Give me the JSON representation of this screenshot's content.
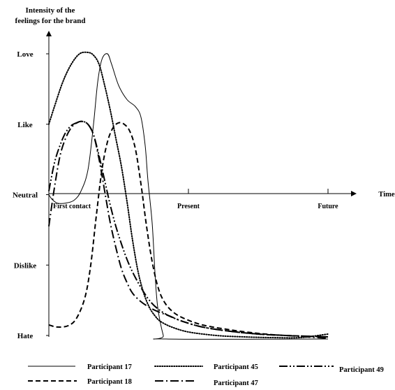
{
  "chart_data": {
    "type": "line",
    "ylabel_lines": [
      "Intensity of the",
      "feelings for the brand"
    ],
    "xlabel": "Time",
    "y_levels": [
      "Hate",
      "Dislike",
      "Neutral",
      "Like",
      "Love"
    ],
    "y_values": [
      -2,
      -1,
      0,
      1,
      2
    ],
    "ylim": [
      -2,
      2
    ],
    "x_ticks": [
      {
        "label": "First contact",
        "value": 0
      },
      {
        "label": "Present",
        "value": 1
      },
      {
        "label": "Future",
        "value": 2
      }
    ],
    "xlim": [
      0,
      2
    ],
    "grid": false,
    "legend_position": "bottom",
    "series": [
      {
        "name": "Participant 17",
        "style": "solid",
        "x": [
          0,
          0.02,
          0.06,
          0.12,
          0.18,
          0.23,
          0.28,
          0.32,
          0.35,
          0.38,
          0.42,
          0.45,
          0.5,
          0.56,
          0.62,
          0.66,
          0.69,
          0.71,
          0.74,
          0.76,
          0.78,
          0.82,
          0.84,
          2
        ],
        "y": [
          0,
          -0.06,
          -0.12,
          -0.12,
          -0.08,
          0.05,
          0.35,
          1.0,
          1.6,
          1.92,
          2.0,
          1.85,
          1.55,
          1.35,
          1.25,
          1.1,
          0.7,
          0.2,
          -0.4,
          -1.1,
          -1.6,
          -2.0,
          -2.05,
          -2.05
        ]
      },
      {
        "name": "Participant 18",
        "style": "dashed",
        "x": [
          0,
          0.06,
          0.14,
          0.2,
          0.26,
          0.3,
          0.34,
          0.38,
          0.42,
          0.46,
          0.5,
          0.54,
          0.58,
          0.62,
          0.66,
          0.7,
          0.74,
          0.78,
          0.82,
          0.88,
          0.96,
          1.1,
          1.3,
          1.5,
          1.7,
          2
        ],
        "y": [
          -1.85,
          -1.88,
          -1.86,
          -1.75,
          -1.45,
          -1.0,
          -0.3,
          0.35,
          0.75,
          0.95,
          1.02,
          1.0,
          0.9,
          0.65,
          0.15,
          -0.45,
          -0.95,
          -1.3,
          -1.5,
          -1.65,
          -1.75,
          -1.85,
          -1.92,
          -1.97,
          -2.0,
          -2.02
        ]
      },
      {
        "name": "Participant 45",
        "style": "dotted",
        "x": [
          0,
          0.04,
          0.1,
          0.16,
          0.22,
          0.28,
          0.32,
          0.36,
          0.4,
          0.44,
          0.48,
          0.52,
          0.56,
          0.6,
          0.64,
          0.68,
          0.72,
          0.76,
          0.8,
          0.88,
          1.0,
          1.2,
          1.4,
          1.6,
          1.8,
          2
        ],
        "y": [
          1.0,
          1.25,
          1.6,
          1.85,
          2.0,
          2.02,
          1.98,
          1.85,
          1.55,
          1.2,
          0.8,
          0.4,
          -0.1,
          -0.65,
          -1.1,
          -1.4,
          -1.6,
          -1.72,
          -1.8,
          -1.88,
          -1.95,
          -2.0,
          -2.02,
          -2.03,
          -2.03,
          -1.98
        ]
      },
      {
        "name": "Participant 47",
        "style": "dash-dot",
        "x": [
          0,
          0.04,
          0.08,
          0.12,
          0.16,
          0.2,
          0.24,
          0.28,
          0.32,
          0.36,
          0.4,
          0.44,
          0.48,
          0.52,
          0.56,
          0.6,
          0.66,
          0.72,
          0.78,
          0.86,
          0.96,
          1.1,
          1.3,
          1.5,
          1.7,
          1.85,
          2
        ],
        "y": [
          -0.45,
          0.1,
          0.55,
          0.8,
          0.95,
          1.02,
          1.04,
          1.0,
          0.85,
          0.5,
          0.05,
          -0.4,
          -0.75,
          -1.05,
          -1.25,
          -1.4,
          -1.52,
          -1.6,
          -1.66,
          -1.72,
          -1.8,
          -1.88,
          -1.94,
          -1.98,
          -2.0,
          -2.02,
          -2.04
        ]
      },
      {
        "name": "Participant 49",
        "style": "dash-dot-dot",
        "x": [
          0,
          0.04,
          0.08,
          0.12,
          0.16,
          0.2,
          0.24,
          0.28,
          0.32,
          0.36,
          0.4,
          0.44,
          0.48,
          0.52,
          0.56,
          0.6,
          0.66,
          0.72,
          0.78,
          0.86,
          0.96,
          1.1,
          1.3,
          1.5,
          1.7,
          1.85,
          2
        ],
        "y": [
          0.05,
          0.45,
          0.7,
          0.88,
          0.98,
          1.02,
          1.04,
          1.0,
          0.85,
          0.55,
          0.2,
          -0.15,
          -0.45,
          -0.7,
          -0.92,
          -1.1,
          -1.32,
          -1.5,
          -1.62,
          -1.72,
          -1.8,
          -1.88,
          -1.94,
          -1.98,
          -2.0,
          -2.01,
          -2.02
        ]
      }
    ]
  }
}
